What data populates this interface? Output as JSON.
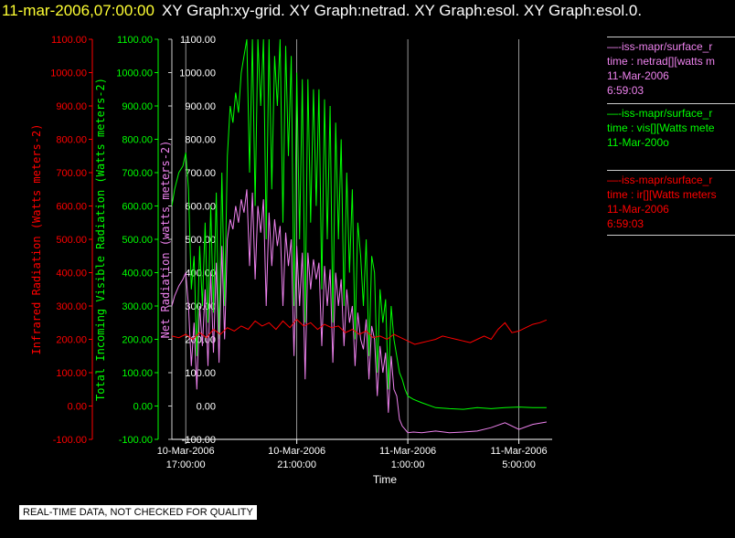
{
  "header": {
    "date": "11-mar-2006,07:00:00",
    "titles": "XY Graph:xy-grid.  XY Graph:netrad.  XY Graph:esol.  XY Graph:esol.0."
  },
  "colors": {
    "ir": "#ff0000",
    "vis": "#00ff00",
    "net": "#ee82ee",
    "grid": "#ffffff",
    "axis": "#ffffff"
  },
  "legend": [
    {
      "color": "#ee82ee",
      "lines": [
        "—-iss-mapr/surface_r",
        "time : netrad[][watts m",
        "11-Mar-2006",
        "6:59:03"
      ]
    },
    {
      "color": "#00ff00",
      "lines": [
        "—-iss-mapr/surface_r",
        "time : vis[][Watts mete",
        "11-Mar-200o"
      ]
    },
    {
      "color": "#ff0000",
      "lines": [
        "—-iss-mapr/surface_r",
        "time : ir[][Watts meters",
        "11-Mar-2006",
        "6:59:03"
      ]
    }
  ],
  "qc_notice": "REAL-TIME DATA, NOT CHECKED FOR QUALITY",
  "chart_data": {
    "type": "line",
    "xlabel": "Time",
    "x_unit": "hours after 10-Mar-2006 17:00:00",
    "xlim": [
      -0.5,
      13.2
    ],
    "x_ticks": [
      {
        "x": 0,
        "label1": "10-Mar-2006",
        "label2": "17:00:00"
      },
      {
        "x": 4,
        "label1": "10-Mar-2006",
        "label2": "21:00:00"
      },
      {
        "x": 8,
        "label1": "11-Mar-2006",
        "label2": "1:00:00"
      },
      {
        "x": 12,
        "label1": "11-Mar-2006",
        "label2": "5:00:00"
      }
    ],
    "ylim": [
      -100,
      1100
    ],
    "y_ticks": [
      -100,
      0,
      100,
      200,
      300,
      400,
      500,
      600,
      700,
      800,
      900,
      1000,
      1100
    ],
    "axes": [
      {
        "name": "ir",
        "label": "Infrared Radiation (Watts meters-2)",
        "tick_labels": [
          "-100.00",
          "0.00",
          "100.00",
          "200.00",
          "300.00",
          "400.00",
          "500.00",
          "600.00",
          "700.00",
          "800.00",
          "900.00",
          "1000.00",
          "1100.00"
        ]
      },
      {
        "name": "vis",
        "label": "Total Incoming Visible Radiation (Watts meters-2)",
        "tick_labels": [
          "-100.00",
          "0.00",
          "100.00",
          "200.00",
          "300.00",
          "400.00",
          "500.00",
          "600.00",
          "700.00",
          "800.00",
          "900.00",
          "1000.00",
          "1100.00"
        ]
      },
      {
        "name": "net",
        "label": "Net Radiation (watts meters-2)",
        "tick_labels": [
          "-100.00",
          "0.00",
          "100.00",
          "200.00",
          "300.00",
          "400.00",
          "500.00",
          "600.00",
          "700.00",
          "800.00",
          "900.00",
          "1000.00",
          "1100.00"
        ]
      }
    ],
    "grid_x": true,
    "series": [
      {
        "name": "vis",
        "color": "#00ff00",
        "x": [
          -0.5,
          -0.4,
          -0.25,
          -0.1,
          0,
          0.1,
          0.2,
          0.3,
          0.4,
          0.5,
          0.6,
          0.7,
          0.8,
          0.9,
          1.0,
          1.1,
          1.2,
          1.3,
          1.4,
          1.5,
          1.6,
          1.7,
          1.8,
          1.9,
          2.0,
          2.1,
          2.2,
          2.3,
          2.4,
          2.5,
          2.6,
          2.7,
          2.8,
          2.9,
          3.0,
          3.1,
          3.2,
          3.3,
          3.4,
          3.5,
          3.6,
          3.7,
          3.8,
          3.9,
          4.0,
          4.1,
          4.2,
          4.3,
          4.4,
          4.5,
          4.6,
          4.7,
          4.8,
          4.9,
          5.0,
          5.1,
          5.2,
          5.3,
          5.4,
          5.5,
          5.6,
          5.7,
          5.8,
          5.9,
          6.0,
          6.1,
          6.2,
          6.3,
          6.4,
          6.5,
          6.6,
          6.7,
          6.8,
          6.9,
          7.0,
          7.1,
          7.2,
          7.3,
          7.4,
          7.5,
          7.6,
          7.7,
          7.8,
          7.9,
          8.0,
          8.2,
          8.5,
          9.0,
          9.5,
          10.0,
          10.5,
          11.0,
          11.5,
          12.0,
          12.5,
          13.0
        ],
        "y": [
          600,
          650,
          700,
          720,
          760,
          650,
          350,
          450,
          150,
          480,
          300,
          550,
          250,
          600,
          280,
          640,
          200,
          700,
          300,
          750,
          900,
          850,
          940,
          880,
          1000,
          1050,
          1100,
          700,
          1100,
          600,
          1100,
          900,
          1100,
          500,
          1100,
          650,
          1050,
          900,
          1100,
          550,
          1080,
          750,
          1050,
          300,
          1000,
          500,
          980,
          250,
          980,
          550,
          950,
          600,
          950,
          350,
          920,
          500,
          900,
          250,
          850,
          500,
          800,
          300,
          700,
          400,
          650,
          200,
          550,
          450,
          300,
          500,
          150,
          450,
          400,
          100,
          350,
          250,
          320,
          50,
          300,
          200,
          150,
          100,
          80,
          50,
          30,
          20,
          10,
          -5,
          -8,
          -10,
          -5,
          -8,
          -5,
          -3,
          -5,
          -5
        ]
      },
      {
        "name": "net",
        "color": "#ee82ee",
        "x": [
          -0.5,
          -0.4,
          -0.25,
          -0.1,
          0,
          0.1,
          0.2,
          0.3,
          0.4,
          0.5,
          0.6,
          0.7,
          0.8,
          0.9,
          1.0,
          1.1,
          1.2,
          1.3,
          1.4,
          1.5,
          1.6,
          1.7,
          1.8,
          1.9,
          2.0,
          2.1,
          2.2,
          2.3,
          2.4,
          2.5,
          2.6,
          2.7,
          2.8,
          2.9,
          3.0,
          3.1,
          3.2,
          3.3,
          3.4,
          3.5,
          3.6,
          3.7,
          3.8,
          3.9,
          4.0,
          4.1,
          4.2,
          4.3,
          4.4,
          4.5,
          4.6,
          4.7,
          4.8,
          4.9,
          5.0,
          5.1,
          5.2,
          5.3,
          5.4,
          5.5,
          5.6,
          5.7,
          5.8,
          5.9,
          6.0,
          6.1,
          6.2,
          6.3,
          6.4,
          6.5,
          6.6,
          6.7,
          6.8,
          6.9,
          7.0,
          7.1,
          7.2,
          7.3,
          7.4,
          7.5,
          7.6,
          7.7,
          7.8,
          7.9,
          8.0,
          8.2,
          8.5,
          9.0,
          9.5,
          10.0,
          10.5,
          11.0,
          11.5,
          12.0,
          12.5,
          13.0
        ],
        "y": [
          300,
          330,
          360,
          380,
          400,
          300,
          120,
          250,
          50,
          300,
          180,
          350,
          120,
          400,
          160,
          430,
          130,
          480,
          200,
          500,
          560,
          530,
          600,
          550,
          620,
          580,
          650,
          420,
          640,
          380,
          600,
          520,
          620,
          300,
          580,
          420,
          560,
          480,
          540,
          300,
          520,
          420,
          500,
          150,
          480,
          300,
          460,
          80,
          460,
          350,
          440,
          380,
          430,
          180,
          420,
          300,
          410,
          130,
          400,
          300,
          380,
          180,
          350,
          250,
          300,
          120,
          280,
          200,
          170,
          260,
          80,
          240,
          200,
          30,
          180,
          100,
          160,
          -20,
          150,
          50,
          30,
          -40,
          -60,
          -70,
          -80,
          -78,
          -80,
          -75,
          -80,
          -78,
          -75,
          -65,
          -50,
          -70,
          -55,
          -48
        ]
      },
      {
        "name": "ir",
        "color": "#ff0000",
        "x": [
          -0.5,
          -0.25,
          0,
          0.25,
          0.5,
          0.75,
          1.0,
          1.25,
          1.5,
          1.75,
          2.0,
          2.25,
          2.5,
          2.75,
          3.0,
          3.25,
          3.5,
          3.75,
          4.0,
          4.25,
          4.5,
          4.75,
          5.0,
          5.25,
          5.5,
          5.75,
          6.0,
          6.25,
          6.5,
          6.75,
          7.0,
          7.25,
          7.5,
          7.75,
          8.0,
          8.25,
          8.5,
          8.75,
          9.0,
          9.25,
          9.5,
          9.75,
          10.0,
          10.25,
          10.5,
          10.75,
          11.0,
          11.25,
          11.5,
          11.75,
          12.0,
          12.25,
          12.5,
          12.75,
          13.0
        ],
        "y": [
          210,
          205,
          215,
          200,
          220,
          205,
          230,
          215,
          235,
          225,
          240,
          230,
          255,
          240,
          250,
          230,
          255,
          235,
          260,
          240,
          250,
          230,
          245,
          235,
          240,
          220,
          230,
          215,
          225,
          205,
          210,
          200,
          215,
          205,
          195,
          185,
          190,
          195,
          200,
          210,
          205,
          200,
          195,
          190,
          200,
          210,
          200,
          230,
          250,
          220,
          225,
          235,
          245,
          250,
          258
        ]
      }
    ]
  }
}
